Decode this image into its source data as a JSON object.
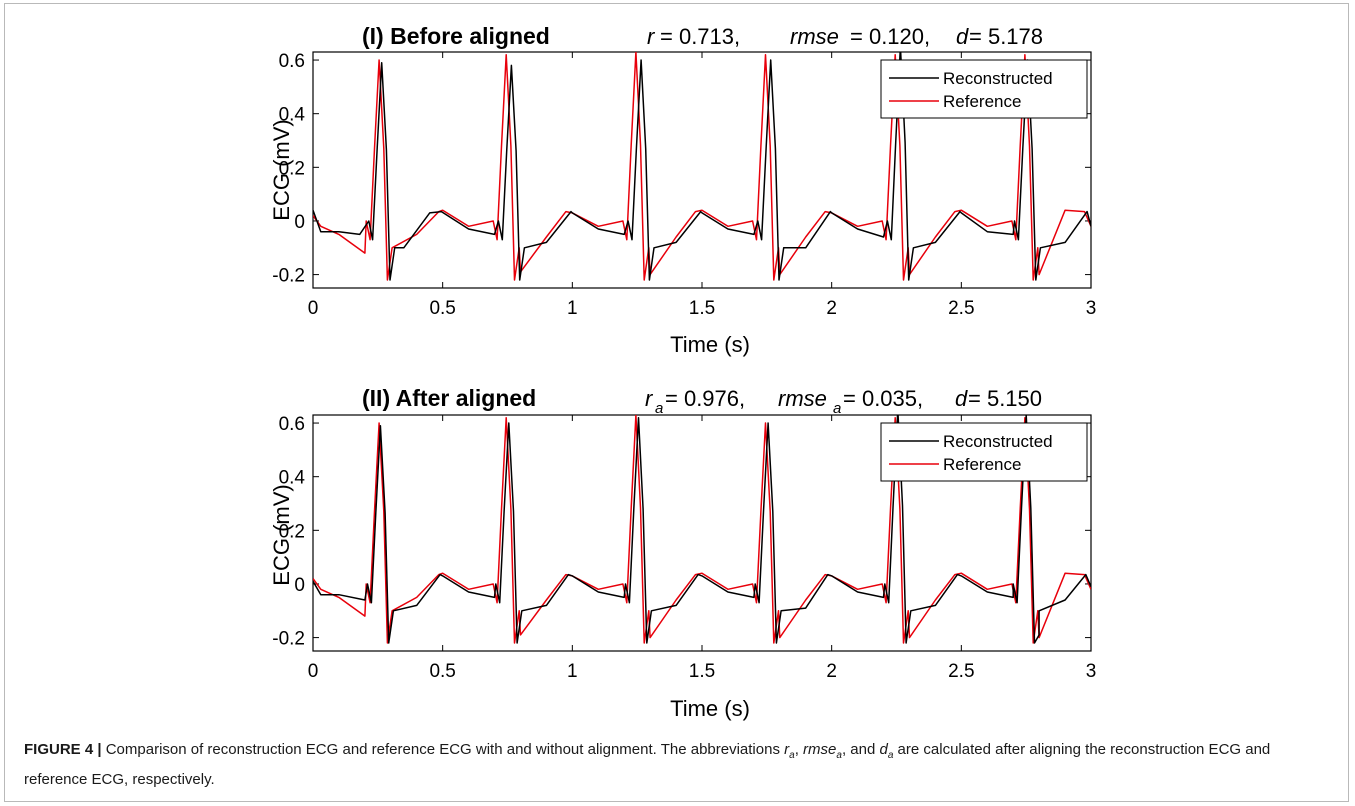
{
  "figure": {
    "caption_label": "FIGURE 4 |",
    "caption_text_1": " Comparison of reconstruction ECG and reference ECG with and without alignment. The abbreviations ",
    "caption_ra_main": "r",
    "caption_ra_sub": "a",
    "caption_sep_1": ", ",
    "caption_rmse_main": "rmse",
    "caption_rmse_sub": "a",
    "caption_sep_2": ", and ",
    "caption_d_main": "d",
    "caption_d_sub": "a",
    "caption_text_2": " are calculated after aligning the reconstruction ECG and reference ECG, respectively."
  },
  "colors": {
    "reconstructed": "#000000",
    "reference": "#e8000b",
    "axes": "#000000"
  },
  "chart_data": [
    {
      "type": "line",
      "title": "(I) Before aligned",
      "stats": {
        "r_label": "r",
        "r_value": " = 0.713,",
        "rmse_label": "rmse",
        "rmse_value": " = 0.120,",
        "d_label": "d",
        "d_value": " = 5.178"
      },
      "xlabel": "Time (s)",
      "ylabel": "ECG (mV)",
      "xlim": [
        0,
        3
      ],
      "ylim": [
        -0.25,
        0.63
      ],
      "xticks": [
        0,
        0.5,
        1,
        1.5,
        2,
        2.5,
        3
      ],
      "xticklabels": [
        "0",
        "0.5",
        "1",
        "1.5",
        "2",
        "2.5",
        "3"
      ],
      "yticks": [
        -0.2,
        0,
        0.2,
        0.4,
        0.6
      ],
      "yticklabels": [
        "-0.2",
        "0",
        "0.2",
        "0.4",
        "0.6"
      ],
      "legend": {
        "position": "top-right",
        "entries": [
          "Reconstructed",
          "Reference"
        ]
      },
      "series": [
        {
          "name": "Reconstructed",
          "color": "#000000",
          "beats": [
            0.265,
            0.765,
            1.265,
            1.765,
            2.265,
            2.755
          ],
          "peaks": [
            0.59,
            0.58,
            0.6,
            0.6,
            0.65,
            0.6
          ],
          "x": [
            0,
            0.03,
            0.1,
            0.18,
            0.25,
            0.3,
            0.35,
            0.45,
            0.6,
            0.7,
            0.8,
            0.9,
            1.0,
            1.1,
            1.2,
            1.3,
            1.4,
            1.5,
            1.6,
            1.7,
            1.8,
            1.9,
            2.0,
            2.1,
            2.2,
            2.3,
            2.4,
            2.5,
            2.6,
            2.7,
            2.8,
            2.9,
            3.0
          ],
          "y": [
            0.04,
            -0.04,
            -0.04,
            -0.05,
            0.1,
            -0.2,
            -0.1,
            0.03,
            -0.03,
            -0.05,
            -0.24,
            -0.08,
            0.03,
            -0.03,
            -0.05,
            -0.22,
            -0.08,
            0.03,
            -0.03,
            -0.05,
            -0.21,
            -0.1,
            0.03,
            -0.03,
            -0.06,
            -0.22,
            -0.08,
            0.03,
            -0.04,
            -0.05,
            -0.19,
            -0.08,
            -0.02
          ]
        },
        {
          "name": "Reference",
          "color": "#e8000b",
          "beats": [
            0.255,
            0.745,
            1.245,
            1.745,
            2.245,
            2.745
          ],
          "peaks": [
            0.6,
            0.62,
            0.63,
            0.62,
            0.62,
            0.62
          ],
          "x": [
            0,
            0.03,
            0.1,
            0.2,
            0.3,
            0.4,
            0.5,
            0.6,
            0.7,
            0.8,
            0.9,
            1.0,
            1.1,
            1.2,
            1.3,
            1.4,
            1.5,
            1.6,
            1.7,
            1.8,
            1.9,
            2.0,
            2.1,
            2.2,
            2.3,
            2.4,
            2.5,
            2.6,
            2.7,
            2.8,
            2.9,
            3.0
          ],
          "y": [
            0.02,
            -0.02,
            -0.05,
            -0.12,
            -0.18,
            -0.05,
            0.04,
            -0.02,
            -0.13,
            -0.19,
            -0.06,
            0.03,
            -0.02,
            -0.13,
            -0.2,
            -0.06,
            0.04,
            -0.02,
            -0.13,
            -0.2,
            -0.06,
            0.03,
            -0.02,
            -0.13,
            -0.2,
            -0.06,
            0.04,
            -0.02,
            -0.13,
            -0.2,
            0.04,
            -0.02
          ]
        }
      ]
    },
    {
      "type": "line",
      "title": "(II) After aligned",
      "stats": {
        "r_label": "r",
        "r_sub": "a",
        "r_value": "= 0.976,",
        "rmse_label": "rmse",
        "rmse_sub": "a",
        "rmse_value": " = 0.035,",
        "d_label": "d",
        "d_value": " = 5.150"
      },
      "xlabel": "Time (s)",
      "ylabel": "ECG (mV)",
      "xlim": [
        0,
        3
      ],
      "ylim": [
        -0.25,
        0.63
      ],
      "xticks": [
        0,
        0.5,
        1,
        1.5,
        2,
        2.5,
        3
      ],
      "xticklabels": [
        "0",
        "0.5",
        "1",
        "1.5",
        "2",
        "2.5",
        "3"
      ],
      "yticks": [
        -0.2,
        0,
        0.2,
        0.4,
        0.6
      ],
      "yticklabels": [
        "-0.2",
        "0",
        "0.2",
        "0.4",
        "0.6"
      ],
      "legend": {
        "position": "top-right",
        "entries": [
          "Reconstructed",
          "Reference"
        ]
      },
      "series": [
        {
          "name": "Reconstructed",
          "color": "#000000",
          "beats": [
            0.26,
            0.755,
            1.255,
            1.755,
            2.255,
            2.75
          ],
          "peaks": [
            0.59,
            0.6,
            0.62,
            0.6,
            0.65,
            0.63
          ],
          "x": [
            0,
            0.03,
            0.1,
            0.2,
            0.3,
            0.4,
            0.5,
            0.6,
            0.7,
            0.8,
            0.9,
            1.0,
            1.1,
            1.2,
            1.3,
            1.4,
            1.5,
            1.6,
            1.7,
            1.8,
            1.9,
            2.0,
            2.1,
            2.2,
            2.3,
            2.4,
            2.5,
            2.6,
            2.7,
            2.8,
            2.9,
            3.0
          ],
          "y": [
            0.01,
            -0.04,
            -0.04,
            -0.06,
            -0.2,
            -0.08,
            0.03,
            -0.03,
            -0.05,
            -0.24,
            -0.08,
            0.03,
            -0.03,
            -0.05,
            -0.22,
            -0.08,
            0.03,
            -0.03,
            -0.05,
            -0.22,
            -0.09,
            0.03,
            -0.03,
            -0.05,
            -0.22,
            -0.08,
            0.03,
            -0.03,
            -0.05,
            -0.19,
            -0.06,
            -0.01
          ]
        },
        {
          "name": "Reference",
          "color": "#e8000b",
          "beats": [
            0.255,
            0.745,
            1.245,
            1.745,
            2.245,
            2.745
          ],
          "peaks": [
            0.6,
            0.62,
            0.63,
            0.6,
            0.62,
            0.62
          ],
          "x": [
            0,
            0.03,
            0.1,
            0.2,
            0.3,
            0.4,
            0.5,
            0.6,
            0.7,
            0.8,
            0.9,
            1.0,
            1.1,
            1.2,
            1.3,
            1.4,
            1.5,
            1.6,
            1.7,
            1.8,
            1.9,
            2.0,
            2.1,
            2.2,
            2.3,
            2.4,
            2.5,
            2.6,
            2.7,
            2.8,
            2.9,
            3.0
          ],
          "y": [
            0.02,
            -0.02,
            -0.05,
            -0.12,
            -0.18,
            -0.05,
            0.04,
            -0.02,
            -0.13,
            -0.19,
            -0.06,
            0.03,
            -0.02,
            -0.13,
            -0.2,
            -0.06,
            0.04,
            -0.02,
            -0.13,
            -0.2,
            -0.06,
            0.03,
            -0.02,
            -0.13,
            -0.2,
            -0.06,
            0.04,
            -0.02,
            -0.13,
            -0.2,
            0.04,
            -0.02
          ]
        }
      ]
    }
  ]
}
